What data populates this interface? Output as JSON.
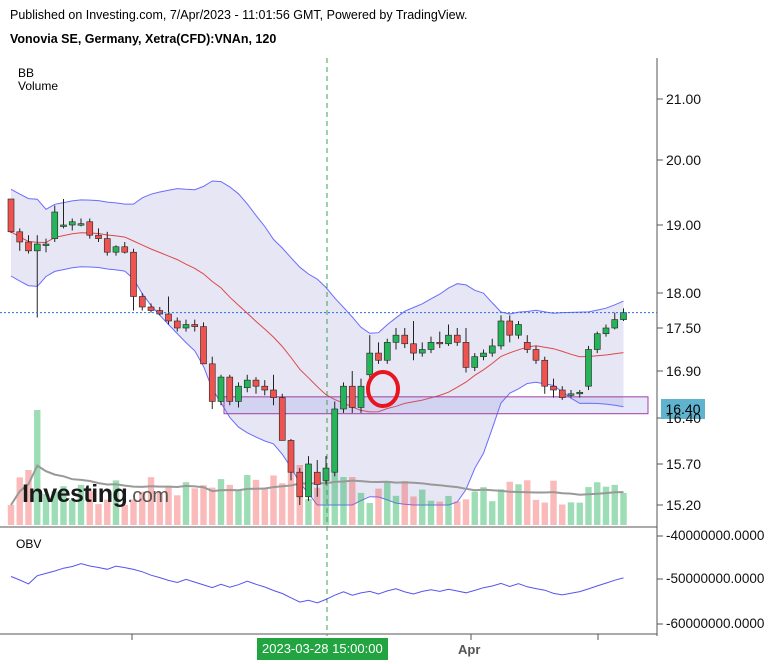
{
  "header": {
    "published": "Published on Investing.com, 7/Apr/2023 - 11:01:56 GMT, Powered by TradingView.",
    "instrument": "Vonovia SE, Germany, Xetra(CFD):VNAn, 120"
  },
  "indicators": {
    "bb": "BB",
    "volume": "Volume",
    "obv": "OBV"
  },
  "logo": {
    "main": "Investing",
    "suffix": ".com"
  },
  "price_tag": "16.40",
  "crosshair_time": "2023-03-28 15:00:00",
  "x_labels": [
    "Apr"
  ],
  "colors": {
    "up": "#26b45a",
    "down": "#ef5350",
    "band": "#6b6bff",
    "band_fill": "#e6e6f5",
    "basis": "#e04848",
    "obv_line": "#5555ee",
    "crosshair": "#3fa34d",
    "marker": "#e8141e"
  },
  "chart_data": [
    {
      "type": "candlestick",
      "title": "Vonovia SE, Germany, Xetra(CFD):VNAn, 120",
      "y_ticks": [
        "21.00",
        "20.00",
        "19.00",
        "18.00",
        "17.50",
        "16.90",
        "16.40",
        "15.70",
        "15.20"
      ],
      "current_price": 17.72,
      "horizontal_zone": [
        16.34,
        16.56
      ],
      "candles": [
        [
          19.4,
          19.4,
          18.88,
          18.9
        ],
        [
          18.9,
          18.95,
          18.62,
          18.75
        ],
        [
          18.75,
          18.85,
          18.58,
          18.62
        ],
        [
          18.62,
          18.85,
          17.65,
          18.72
        ],
        [
          18.72,
          18.8,
          18.6,
          18.72
        ],
        [
          18.8,
          19.3,
          18.75,
          19.2
        ],
        [
          19.0,
          19.4,
          18.95,
          19.0
        ],
        [
          19.0,
          19.1,
          18.92,
          19.05
        ],
        [
          19.0,
          19.1,
          18.98,
          19.02
        ],
        [
          19.05,
          19.1,
          18.8,
          18.85
        ],
        [
          18.85,
          18.95,
          18.75,
          18.8
        ],
        [
          18.8,
          18.9,
          18.55,
          18.6
        ],
        [
          18.6,
          18.7,
          18.55,
          18.68
        ],
        [
          18.68,
          18.75,
          18.58,
          18.6
        ],
        [
          18.6,
          18.65,
          17.75,
          17.95
        ],
        [
          17.95,
          18.0,
          17.75,
          17.8
        ],
        [
          17.8,
          17.85,
          17.72,
          17.75
        ],
        [
          17.75,
          17.8,
          17.68,
          17.7
        ],
        [
          17.7,
          17.95,
          17.55,
          17.6
        ],
        [
          17.6,
          17.65,
          17.45,
          17.5
        ],
        [
          17.5,
          17.62,
          17.45,
          17.55
        ],
        [
          17.55,
          17.62,
          17.45,
          17.52
        ],
        [
          17.52,
          17.58,
          17.0,
          17.0
        ],
        [
          17.0,
          17.1,
          16.4,
          16.5
        ],
        [
          16.5,
          16.85,
          16.45,
          16.82
        ],
        [
          16.82,
          16.85,
          16.45,
          16.5
        ],
        [
          16.5,
          16.75,
          16.42,
          16.7
        ],
        [
          16.68,
          16.85,
          16.62,
          16.78
        ],
        [
          16.78,
          16.82,
          16.6,
          16.7
        ],
        [
          16.7,
          16.78,
          16.58,
          16.65
        ],
        [
          16.65,
          16.85,
          16.45,
          16.55
        ],
        [
          16.55,
          16.6,
          16.0,
          16.0
        ],
        [
          16.0,
          16.02,
          15.5,
          15.6
        ],
        [
          15.6,
          15.65,
          15.2,
          15.3
        ],
        [
          15.3,
          15.8,
          15.25,
          15.7
        ],
        [
          15.6,
          15.75,
          15.3,
          15.45
        ],
        [
          15.5,
          15.8,
          15.45,
          15.65
        ],
        [
          15.6,
          16.5,
          15.55,
          16.4
        ],
        [
          16.4,
          16.75,
          16.35,
          16.7
        ],
        [
          16.7,
          16.9,
          16.35,
          16.42
        ],
        [
          16.42,
          16.8,
          16.35,
          16.7
        ],
        [
          16.85,
          17.4,
          16.8,
          17.15
        ],
        [
          17.15,
          17.3,
          17.0,
          17.05
        ],
        [
          17.05,
          17.35,
          17.0,
          17.3
        ],
        [
          17.3,
          17.5,
          17.2,
          17.4
        ],
        [
          17.4,
          17.5,
          17.22,
          17.28
        ],
        [
          17.28,
          17.6,
          17.05,
          17.15
        ],
        [
          17.15,
          17.3,
          17.1,
          17.2
        ],
        [
          17.2,
          17.38,
          17.15,
          17.3
        ],
        [
          17.3,
          17.45,
          17.22,
          17.28
        ],
        [
          17.28,
          17.55,
          17.25,
          17.4
        ],
        [
          17.4,
          17.5,
          17.25,
          17.3
        ],
        [
          17.3,
          17.5,
          16.88,
          16.95
        ],
        [
          16.95,
          17.15,
          16.9,
          17.1
        ],
        [
          17.1,
          17.2,
          17.05,
          17.15
        ],
        [
          17.15,
          17.35,
          17.1,
          17.25
        ],
        [
          17.25,
          17.68,
          17.2,
          17.6
        ],
        [
          17.6,
          17.68,
          17.3,
          17.4
        ],
        [
          17.4,
          17.6,
          17.35,
          17.55
        ],
        [
          17.3,
          17.4,
          17.15,
          17.2
        ],
        [
          17.2,
          17.25,
          17.0,
          17.05
        ],
        [
          17.05,
          17.1,
          16.6,
          16.7
        ],
        [
          16.7,
          16.8,
          16.55,
          16.65
        ],
        [
          16.65,
          16.7,
          16.52,
          16.55
        ],
        [
          16.6,
          16.65,
          16.55,
          16.6
        ],
        [
          16.6,
          16.65,
          16.55,
          16.62
        ],
        [
          16.7,
          17.25,
          16.65,
          17.2
        ],
        [
          17.2,
          17.45,
          17.15,
          17.42
        ],
        [
          17.42,
          17.55,
          17.38,
          17.5
        ],
        [
          17.5,
          17.72,
          17.48,
          17.62
        ],
        [
          17.62,
          17.78,
          17.6,
          17.72
        ]
      ],
      "volume_ticks": [],
      "obv_ticks": [
        "-40000000.0000",
        "-50000000.0000",
        "-60000000.0000"
      ]
    }
  ]
}
